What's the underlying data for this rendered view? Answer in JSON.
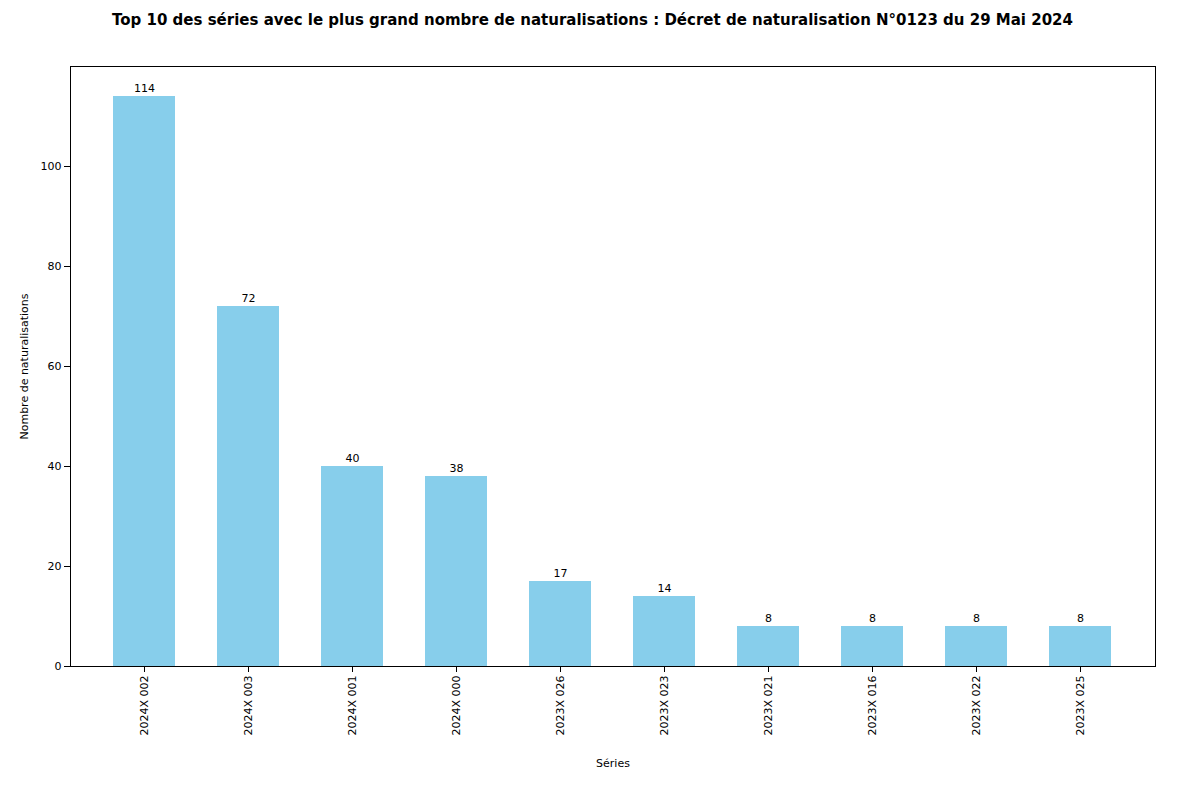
{
  "chart_data": {
    "type": "bar",
    "title": "Top 10 des séries avec le plus grand nombre de naturalisations : Décret de naturalisation N°0123 du 29 Mai 2024",
    "xlabel": "Séries",
    "ylabel": "Nombre de naturalisations",
    "categories": [
      "2024X 002",
      "2024X 003",
      "2024X 001",
      "2024X 000",
      "2023X 026",
      "2023X 023",
      "2023X 021",
      "2023X 016",
      "2023X 022",
      "2023X 025"
    ],
    "values": [
      114,
      72,
      40,
      38,
      17,
      14,
      8,
      8,
      8,
      8
    ],
    "color": "#87CEEB",
    "ylim": [
      0,
      120
    ],
    "yticks": [
      0,
      20,
      40,
      60,
      80,
      100
    ],
    "grid": false,
    "data_labels": true
  }
}
